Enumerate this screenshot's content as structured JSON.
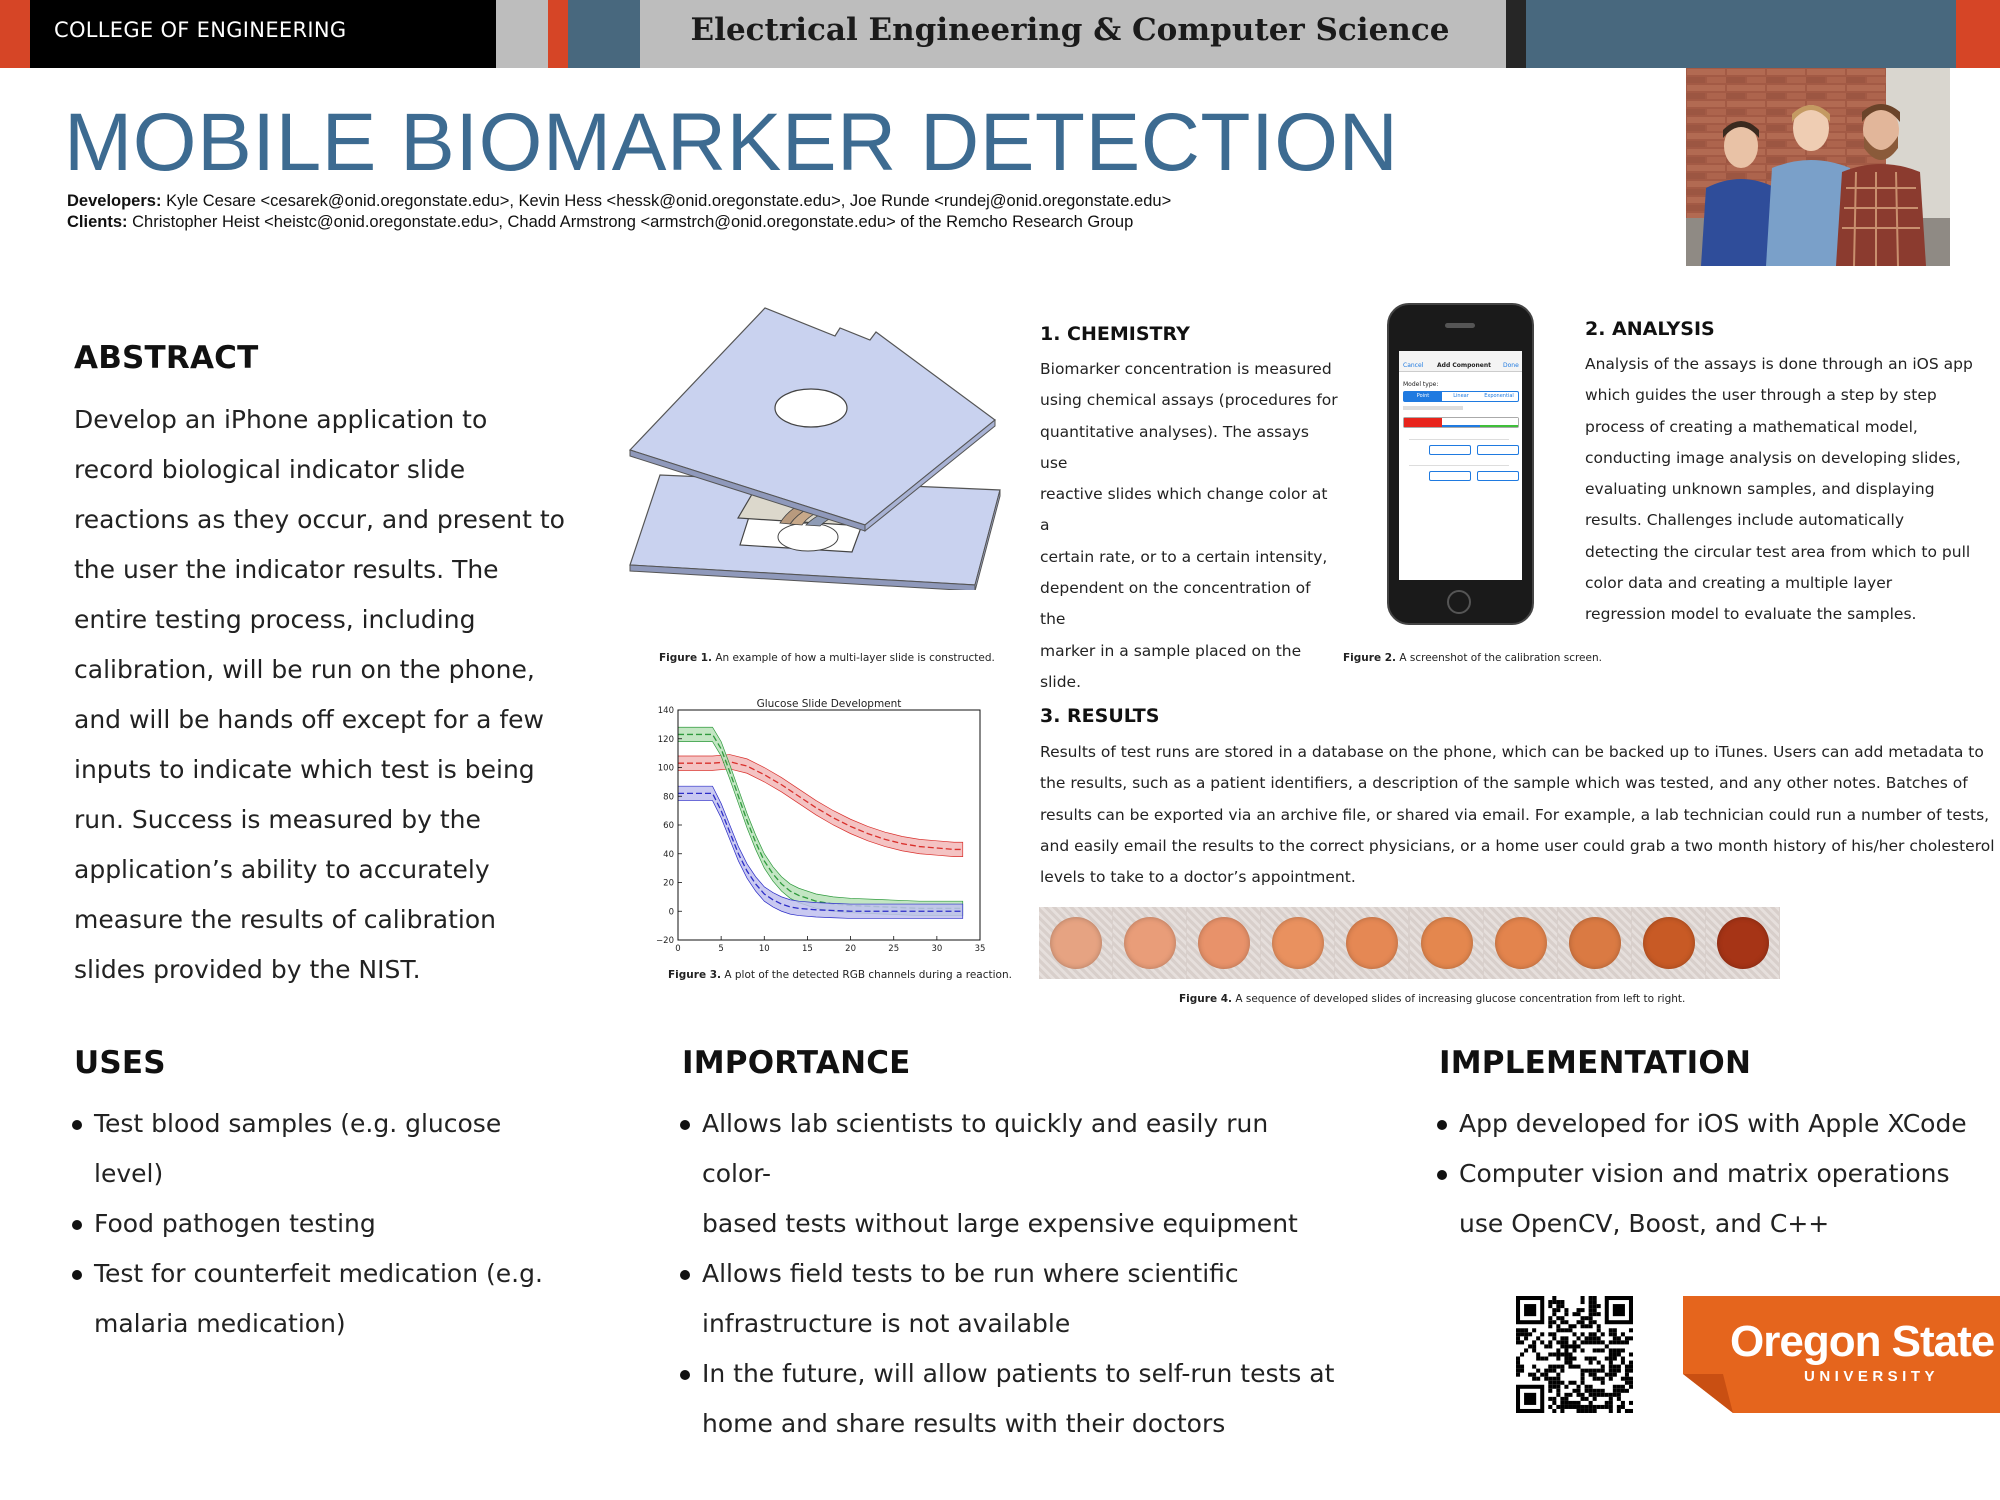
{
  "header": {
    "college": "COLLEGE OF ENGINEERING",
    "department": "Electrical Engineering & Computer Science",
    "colors": {
      "black": "#000000",
      "orange": "#d64526",
      "slate": "#48687e",
      "gray": "#bdbdbd",
      "dark": "#262626"
    }
  },
  "title": "MOBILE BIOMARKER DETECTION",
  "credits": {
    "developers_label": "Developers:",
    "developers": "Kyle Cesare <cesarek@onid.oregonstate.edu>, Kevin Hess <hessk@onid.oregonstate.edu>, Joe Runde <rundej@onid.oregonstate.edu>",
    "clients_label": "Clients:",
    "clients": "Christopher Heist <heistc@onid.oregonstate.edu>, Chadd Armstrong <armstrch@onid.oregonstate.edu> of the Remcho Research Group"
  },
  "abstract": {
    "heading": "ABSTRACT",
    "lines": [
      "Develop an iPhone application to",
      "record biological indicator slide",
      "reactions as they occur, and present to",
      "the user the indicator results. The",
      "entire testing process, including",
      "calibration, will be run on the phone,",
      "and will be hands off except for a few",
      "inputs to indicate which test is being",
      "run. Success is measured by the",
      "application’s ability to accurately",
      "measure the results of calibration",
      "slides provided by the NIST."
    ]
  },
  "chemistry": {
    "heading": "1. CHEMISTRY",
    "lines": [
      "Biomarker concentration is measured",
      "using chemical assays (procedures for",
      "quantitative analyses). The assays use",
      "reactive slides which change color at a",
      "certain rate, or to a certain intensity,",
      "dependent on the concentration of the",
      "marker in a sample placed on the slide."
    ]
  },
  "analysis": {
    "heading": "2. ANALYSIS",
    "lines": [
      "Analysis of the assays is done through an iOS app",
      "which guides the user through a step by step",
      "process of creating a mathematical model,",
      "conducting image analysis on developing slides,",
      "evaluating unknown samples, and displaying",
      "results. Challenges include automatically",
      "detecting the circular test area from which to pull",
      "color data and creating a multiple layer",
      "regression model to evaluate the samples."
    ]
  },
  "results": {
    "heading": "3. RESULTS",
    "lines": [
      "Results of test runs are stored in a database on the phone, which can be backed up to iTunes. Users can add metadata to",
      "the results, such as a patient identifiers, a description of the sample which was tested, and any other notes. Batches of",
      "results can be exported via an archive file, or shared via email. For example, a lab technician could run a number of tests,",
      "and easily email the results to the correct physicians, or a home user could grab a two month history of his/her cholesterol",
      "levels to take to a doctor’s appointment."
    ]
  },
  "figures": {
    "fig1": {
      "label": "Figure 1.",
      "text": " An example of how a multi-layer slide is constructed."
    },
    "fig2": {
      "label": "Figure 2.",
      "text": " A screenshot of the calibration screen."
    },
    "fig3": {
      "label": "Figure 3.",
      "text": " A plot of the detected RGB channels during a reaction."
    },
    "fig4": {
      "label": "Figure 4.",
      "text": " A sequence of developed slides of increasing glucose concentration from left to right."
    }
  },
  "phone_ui": {
    "nav_cancel": "Cancel",
    "nav_title": "Add Component",
    "nav_done": "Done",
    "model_type": "Model type:",
    "seg1": "Point",
    "seg2": "Linear",
    "seg3": "Exponential",
    "colors": {
      "red": "#e8241c",
      "blue": "#1f7ae0",
      "green": "#3fbf3a"
    }
  },
  "slide_colors": [
    "#e6a382",
    "#e99d79",
    "#e8926a",
    "#e9915f",
    "#e58854",
    "#e4874e",
    "#e3844d",
    "#da7a43",
    "#c85a25",
    "#a63416"
  ],
  "chart_data": {
    "type": "line",
    "title": "Glucose Slide Development",
    "xlabel": "",
    "ylabel": "",
    "xlim": [
      0,
      35
    ],
    "ylim": [
      -20,
      140
    ],
    "xticks": [
      0,
      5,
      10,
      15,
      20,
      25,
      30,
      35
    ],
    "yticks": [
      -20,
      0,
      20,
      40,
      60,
      80,
      100,
      120,
      140
    ],
    "grid": false,
    "series": [
      {
        "color": "#d9302c",
        "band": "#f2b8b8",
        "x": [
          0,
          4,
          6,
          8,
          10,
          12,
          14,
          16,
          18,
          20,
          22,
          24,
          26,
          28,
          30,
          32,
          33
        ],
        "values": [
          103,
          103,
          104,
          101,
          95,
          88,
          80,
          72,
          65,
          59,
          54,
          50,
          47,
          45,
          44,
          43,
          43
        ]
      },
      {
        "color": "#2e9a3c",
        "band": "#b9e2b9",
        "x": [
          0,
          4,
          5,
          6,
          7,
          8,
          9,
          10,
          11,
          12,
          13,
          14,
          16,
          18,
          20,
          24,
          28,
          33
        ],
        "values": [
          123,
          123,
          113,
          97,
          80,
          63,
          48,
          35,
          26,
          19,
          14,
          11,
          7,
          5,
          4,
          3,
          2,
          2
        ]
      },
      {
        "color": "#2d2ec7",
        "band": "#c0c0ee",
        "x": [
          0,
          4,
          5,
          6,
          7,
          8,
          9,
          10,
          11,
          12,
          13,
          14,
          16,
          18,
          20,
          24,
          28,
          33
        ],
        "values": [
          82,
          82,
          70,
          55,
          40,
          28,
          19,
          12,
          8,
          5,
          3,
          2,
          1,
          0.5,
          0,
          0,
          0,
          0
        ]
      }
    ]
  },
  "uses": {
    "heading": "USES",
    "items": [
      [
        "Test blood samples (e.g. glucose",
        "level)"
      ],
      [
        "Food pathogen testing"
      ],
      [
        "Test for counterfeit medication (e.g.",
        "malaria medication)"
      ]
    ]
  },
  "importance": {
    "heading": "IMPORTANCE",
    "items": [
      [
        "Allows lab scientists to quickly and easily run color-",
        "based tests without large expensive equipment"
      ],
      [
        "Allows field tests to be run where scientific",
        "infrastructure is not available"
      ],
      [
        "In the future, will allow patients to self-run tests at",
        "home and share results with their doctors"
      ]
    ]
  },
  "implementation": {
    "heading": "IMPLEMENTATION",
    "items": [
      [
        "App developed for iOS with Apple XCode"
      ],
      [
        "Computer vision and matrix operations",
        "use OpenCV, Boost, and C++"
      ]
    ]
  },
  "logo": {
    "name": "Oregon State",
    "sub": "UNIVERSITY",
    "color": "#e5651d"
  }
}
